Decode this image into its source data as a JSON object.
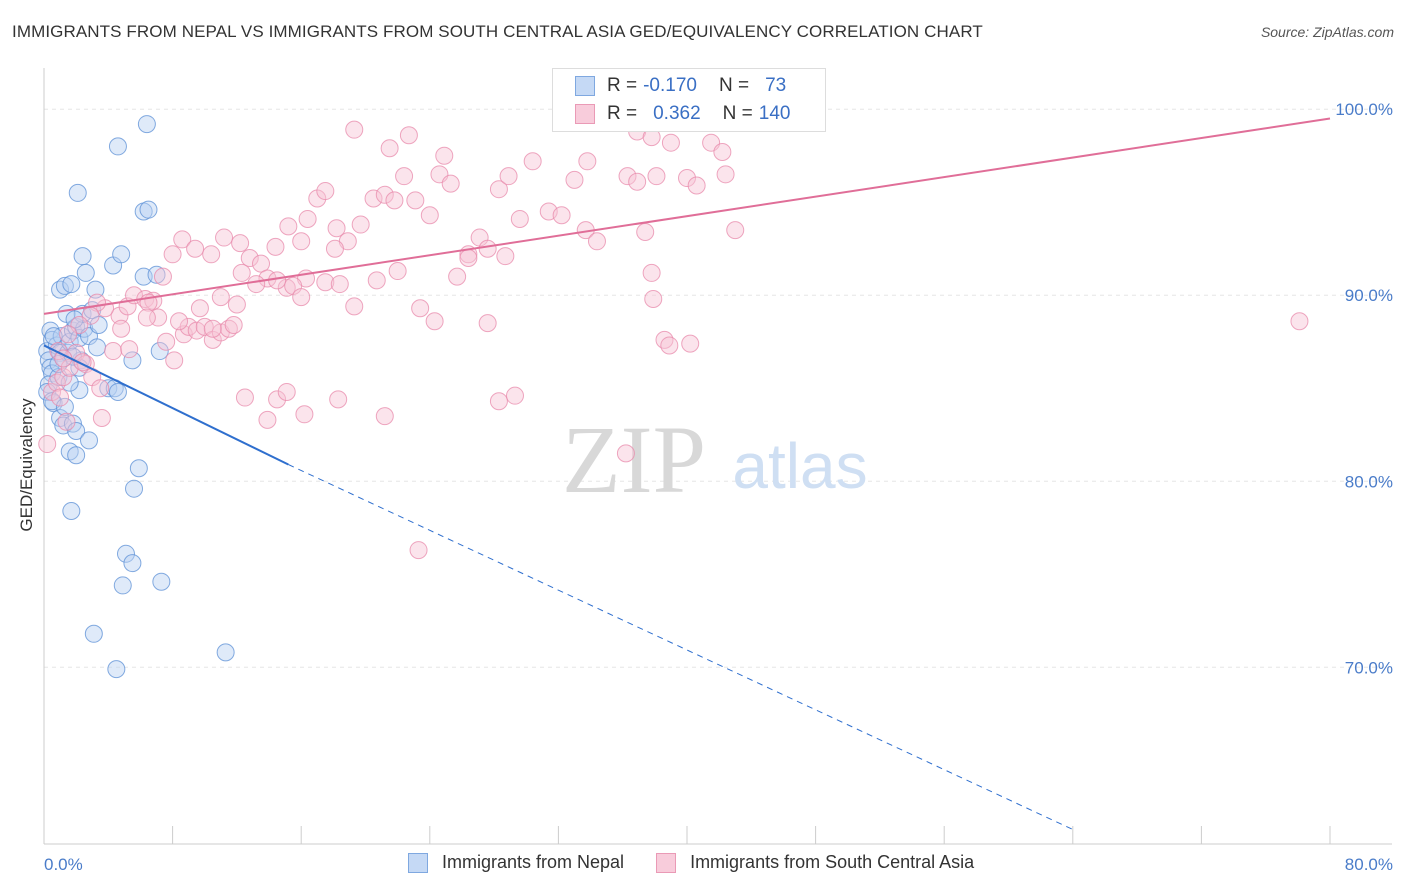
{
  "title": "IMMIGRANTS FROM NEPAL VS IMMIGRANTS FROM SOUTH CENTRAL ASIA GED/EQUIVALENCY CORRELATION CHART",
  "source": "Source: ZipAtlas.com",
  "watermark": {
    "zip": "ZIP",
    "atlas": "atlas"
  },
  "legend": {
    "r_label": "R =",
    "n_label": "N =",
    "rows": [
      {
        "r": "-0.170",
        "n": "73",
        "color": "#7fa8e0",
        "fill": "#c5d9f5"
      },
      {
        "r": "0.362",
        "n": "140",
        "color": "#ea9ab6",
        "fill": "#f8ccdb"
      }
    ]
  },
  "chart_data": {
    "type": "scatter",
    "ylabel": "GED/Equivalency",
    "xlim": [
      0,
      80
    ],
    "ylim": [
      60.5,
      102
    ],
    "x_ticks": [
      0,
      80
    ],
    "x_tick_labels": [
      "0.0%",
      "80.0%"
    ],
    "y_ticks": [
      70,
      80,
      90,
      100
    ],
    "y_tick_labels": [
      "70.0%",
      "80.0%",
      "90.0%",
      "100.0%"
    ],
    "grid": true,
    "series": [
      {
        "name": "Immigrants from Nepal",
        "color": "#5b8fd6",
        "fill": "#b9d1f2",
        "trend": {
          "x0": 0,
          "y0": 87.3,
          "x1": 15.2,
          "y1": 80.9,
          "dash_to_x": 64.2,
          "dash_to_y": 61.2,
          "color": "#2f6fce"
        },
        "points": [
          [
            0.2,
            87.0
          ],
          [
            0.3,
            86.5
          ],
          [
            0.4,
            86.1
          ],
          [
            0.5,
            85.8
          ],
          [
            0.3,
            85.2
          ],
          [
            0.2,
            84.8
          ],
          [
            0.6,
            84.2
          ],
          [
            0.4,
            88.1
          ],
          [
            0.5,
            87.6
          ],
          [
            0.8,
            87.3
          ],
          [
            1.0,
            86.9
          ],
          [
            1.2,
            86.6
          ],
          [
            0.9,
            85.6
          ],
          [
            1.1,
            87.8
          ],
          [
            1.5,
            86.9
          ],
          [
            1.6,
            87.5
          ],
          [
            1.8,
            88.1
          ],
          [
            2.0,
            88.3
          ],
          [
            2.2,
            87.7
          ],
          [
            2.5,
            88.2
          ],
          [
            2.8,
            87.8
          ],
          [
            2.4,
            89.0
          ],
          [
            3.0,
            89.2
          ],
          [
            2.3,
            86.5
          ],
          [
            1.4,
            89.0
          ],
          [
            1.0,
            90.3
          ],
          [
            1.3,
            90.5
          ],
          [
            1.7,
            90.6
          ],
          [
            2.6,
            91.2
          ],
          [
            3.2,
            90.3
          ],
          [
            4.3,
            91.6
          ],
          [
            4.8,
            92.2
          ],
          [
            2.4,
            92.1
          ],
          [
            6.2,
            91.0
          ],
          [
            7.0,
            91.1
          ],
          [
            6.2,
            94.5
          ],
          [
            6.5,
            94.6
          ],
          [
            6.4,
            99.2
          ],
          [
            4.6,
            98.0
          ],
          [
            2.1,
            95.5
          ],
          [
            3.3,
            87.2
          ],
          [
            2.2,
            86.1
          ],
          [
            1.8,
            86.7
          ],
          [
            5.5,
            86.5
          ],
          [
            7.2,
            87.0
          ],
          [
            4.0,
            85.0
          ],
          [
            4.4,
            85.0
          ],
          [
            4.6,
            84.8
          ],
          [
            2.2,
            84.9
          ],
          [
            1.6,
            85.3
          ],
          [
            0.5,
            84.3
          ],
          [
            1.0,
            83.4
          ],
          [
            1.2,
            83.0
          ],
          [
            1.8,
            83.1
          ],
          [
            2.0,
            82.7
          ],
          [
            2.8,
            82.2
          ],
          [
            1.6,
            81.6
          ],
          [
            2.0,
            81.4
          ],
          [
            5.9,
            80.7
          ],
          [
            5.6,
            79.6
          ],
          [
            1.7,
            78.4
          ],
          [
            5.1,
            76.1
          ],
          [
            5.5,
            75.6
          ],
          [
            7.3,
            74.6
          ],
          [
            4.9,
            74.4
          ],
          [
            3.1,
            71.8
          ],
          [
            11.3,
            70.8
          ],
          [
            4.5,
            69.9
          ],
          [
            0.6,
            87.8
          ],
          [
            1.9,
            88.7
          ],
          [
            3.4,
            88.4
          ],
          [
            0.9,
            86.3
          ],
          [
            1.3,
            84.0
          ]
        ]
      },
      {
        "name": "Immigrants from South Central Asia",
        "color": "#e88aab",
        "fill": "#f7c3d5",
        "trend": {
          "x0": 0,
          "y0": 89.0,
          "x1": 80,
          "y1": 99.5,
          "color": "#e06e98"
        },
        "points": [
          [
            0.2,
            82.0
          ],
          [
            0.5,
            84.8
          ],
          [
            0.8,
            85.3
          ],
          [
            1.2,
            85.6
          ],
          [
            1.6,
            86.1
          ],
          [
            2.0,
            86.9
          ],
          [
            2.6,
            86.3
          ],
          [
            3.0,
            85.6
          ],
          [
            3.5,
            85.0
          ],
          [
            1.0,
            84.5
          ],
          [
            1.4,
            83.2
          ],
          [
            3.6,
            83.4
          ],
          [
            4.3,
            87.0
          ],
          [
            4.7,
            88.9
          ],
          [
            5.2,
            89.4
          ],
          [
            5.6,
            90.0
          ],
          [
            6.3,
            89.8
          ],
          [
            6.8,
            89.7
          ],
          [
            7.1,
            88.8
          ],
          [
            7.6,
            87.5
          ],
          [
            8.1,
            86.5
          ],
          [
            8.7,
            87.9
          ],
          [
            9.0,
            88.3
          ],
          [
            9.5,
            88.1
          ],
          [
            10.0,
            88.3
          ],
          [
            10.5,
            87.6
          ],
          [
            11.0,
            88.0
          ],
          [
            11.5,
            88.2
          ],
          [
            12.0,
            89.5
          ],
          [
            6.5,
            89.6
          ],
          [
            7.4,
            91.0
          ],
          [
            8.0,
            92.2
          ],
          [
            8.6,
            93.0
          ],
          [
            9.4,
            92.5
          ],
          [
            10.4,
            92.2
          ],
          [
            11.2,
            93.1
          ],
          [
            12.2,
            92.8
          ],
          [
            12.8,
            92.0
          ],
          [
            13.5,
            91.7
          ],
          [
            14.4,
            92.6
          ],
          [
            15.2,
            93.7
          ],
          [
            16.0,
            92.9
          ],
          [
            16.4,
            94.1
          ],
          [
            17.0,
            95.2
          ],
          [
            17.5,
            95.6
          ],
          [
            18.2,
            93.6
          ],
          [
            18.9,
            92.9
          ],
          [
            19.7,
            93.8
          ],
          [
            20.5,
            95.2
          ],
          [
            21.2,
            95.4
          ],
          [
            21.8,
            95.1
          ],
          [
            22.4,
            96.4
          ],
          [
            23.1,
            95.1
          ],
          [
            24.0,
            94.3
          ],
          [
            24.6,
            96.5
          ],
          [
            25.3,
            96.0
          ],
          [
            26.4,
            92.2
          ],
          [
            27.1,
            93.1
          ],
          [
            27.6,
            92.5
          ],
          [
            28.3,
            95.7
          ],
          [
            28.9,
            96.4
          ],
          [
            29.6,
            94.1
          ],
          [
            30.4,
            97.2
          ],
          [
            31.4,
            94.5
          ],
          [
            32.2,
            94.3
          ],
          [
            33.0,
            96.2
          ],
          [
            33.7,
            93.5
          ],
          [
            34.4,
            92.9
          ],
          [
            35.2,
            100.0
          ],
          [
            36.3,
            96.4
          ],
          [
            36.9,
            98.8
          ],
          [
            38.1,
            96.4
          ],
          [
            39.0,
            98.2
          ],
          [
            40.0,
            96.3
          ],
          [
            40.6,
            95.9
          ],
          [
            41.5,
            98.2
          ],
          [
            42.2,
            97.7
          ],
          [
            42.4,
            96.5
          ],
          [
            43.0,
            93.5
          ],
          [
            37.8,
            98.5
          ],
          [
            21.5,
            97.9
          ],
          [
            19.3,
            98.9
          ],
          [
            22.7,
            98.6
          ],
          [
            24.9,
            97.5
          ],
          [
            33.8,
            97.2
          ],
          [
            26.4,
            92.0
          ],
          [
            28.7,
            92.1
          ],
          [
            36.9,
            96.1
          ],
          [
            18.1,
            92.5
          ],
          [
            15.1,
            90.4
          ],
          [
            16.3,
            90.9
          ],
          [
            17.5,
            90.7
          ],
          [
            18.4,
            90.6
          ],
          [
            19.3,
            89.4
          ],
          [
            20.7,
            90.8
          ],
          [
            22.0,
            91.3
          ],
          [
            23.4,
            89.3
          ],
          [
            24.3,
            88.6
          ],
          [
            25.7,
            91.0
          ],
          [
            27.6,
            88.5
          ],
          [
            13.9,
            90.9
          ],
          [
            14.5,
            90.8
          ],
          [
            15.5,
            90.5
          ],
          [
            16.0,
            89.9
          ],
          [
            10.5,
            88.2
          ],
          [
            9.7,
            89.3
          ],
          [
            11.0,
            89.9
          ],
          [
            12.3,
            91.2
          ],
          [
            13.2,
            90.6
          ],
          [
            11.8,
            88.4
          ],
          [
            8.4,
            88.6
          ],
          [
            6.4,
            88.8
          ],
          [
            5.3,
            87.1
          ],
          [
            4.8,
            88.2
          ],
          [
            3.8,
            89.3
          ],
          [
            3.3,
            89.6
          ],
          [
            2.9,
            88.9
          ],
          [
            2.2,
            88.4
          ],
          [
            1.5,
            87.9
          ],
          [
            0.9,
            87.0
          ],
          [
            12.5,
            84.5
          ],
          [
            14.5,
            84.4
          ],
          [
            15.1,
            84.8
          ],
          [
            13.9,
            83.3
          ],
          [
            16.2,
            83.6
          ],
          [
            18.3,
            84.4
          ],
          [
            21.2,
            83.5
          ],
          [
            28.3,
            84.3
          ],
          [
            29.3,
            84.6
          ],
          [
            36.2,
            81.5
          ],
          [
            23.3,
            76.3
          ],
          [
            37.4,
            93.4
          ],
          [
            37.9,
            89.8
          ],
          [
            38.6,
            87.6
          ],
          [
            38.9,
            87.3
          ],
          [
            40.2,
            87.4
          ],
          [
            37.8,
            91.2
          ],
          [
            1.2,
            86.6
          ],
          [
            2.4,
            86.4
          ],
          [
            78.1,
            88.6
          ]
        ]
      }
    ]
  }
}
